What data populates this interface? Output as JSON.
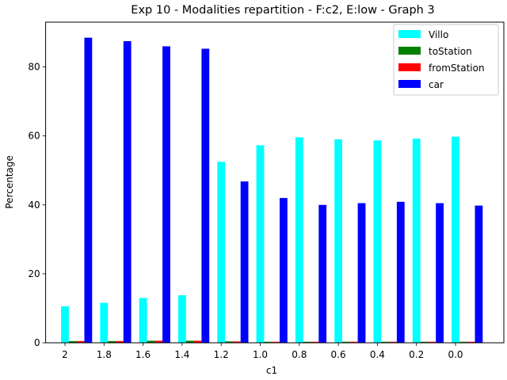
{
  "chart_data": {
    "type": "bar",
    "title": "Exp 10 - Modalities repartition - F:c2, E:low - Graph 3",
    "xlabel": "c1",
    "ylabel": "Percentage",
    "categories": [
      "2",
      "1.8",
      "1.6",
      "1.4",
      "1.2",
      "1.0",
      "0.8",
      "0.6",
      "0.4",
      "0.2",
      "0.0"
    ],
    "ylim": [
      0,
      93
    ],
    "yticks": [
      0,
      20,
      40,
      60,
      80
    ],
    "grid": false,
    "legend_position": "top-right",
    "series": [
      {
        "name": "Villo",
        "color": "#00ffff",
        "values": [
          10.6,
          11.6,
          13.0,
          13.8,
          52.5,
          57.3,
          59.6,
          59.0,
          58.7,
          59.2,
          59.8
        ]
      },
      {
        "name": "toStation",
        "color": "#008000",
        "values": [
          0.5,
          0.5,
          0.6,
          0.6,
          0.4,
          0.3,
          0.3,
          0.3,
          0.3,
          0.3,
          0.3
        ]
      },
      {
        "name": "fromStation",
        "color": "#ff0000",
        "values": [
          0.5,
          0.5,
          0.6,
          0.6,
          0.4,
          0.3,
          0.3,
          0.3,
          0.3,
          0.3,
          0.3
        ]
      },
      {
        "name": "car",
        "color": "#0000ff",
        "values": [
          88.5,
          87.5,
          86.0,
          85.3,
          46.8,
          42.0,
          40.0,
          40.5,
          40.9,
          40.5,
          39.8
        ]
      }
    ]
  }
}
